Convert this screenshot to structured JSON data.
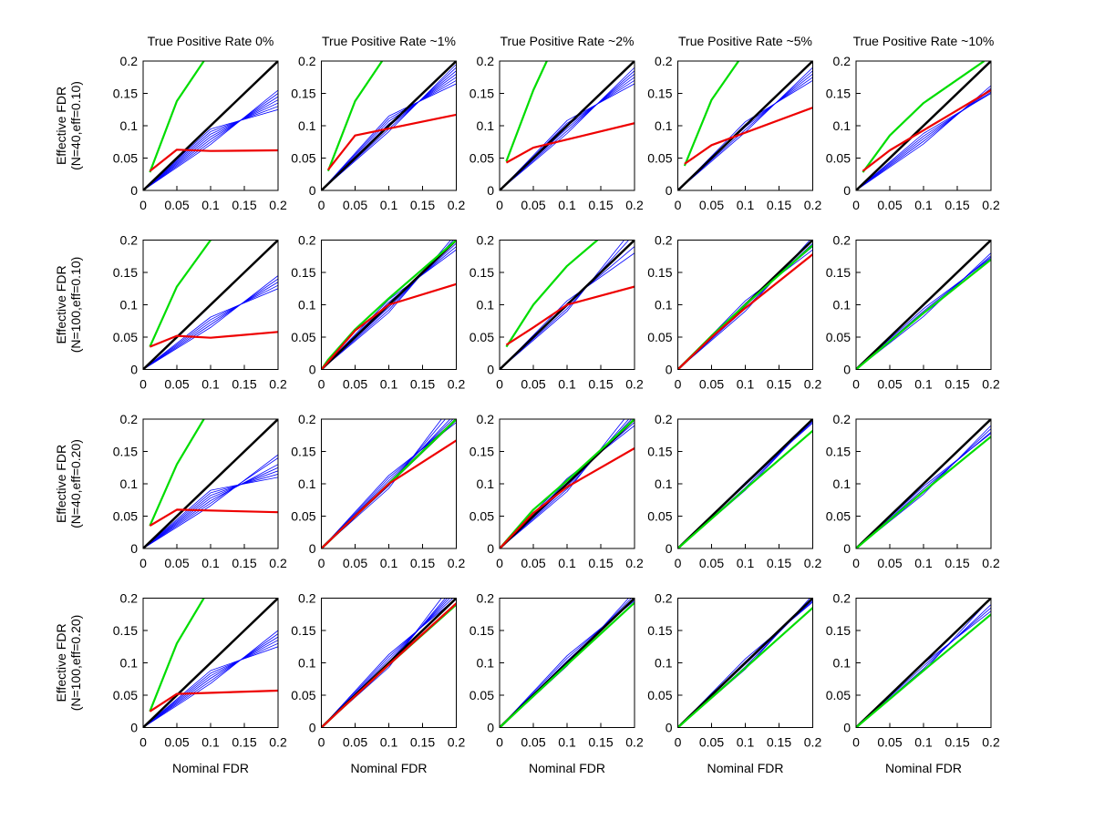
{
  "figure": {
    "column_titles": [
      "True Positive Rate 0%",
      "True Positive Rate ~1%",
      "True Positive Rate ~2%",
      "True Positive Rate ~5%",
      "True Positive Rate ~10%"
    ],
    "row_ylabels": [
      [
        "Effective FDR",
        "(N=40,eff=0.10)"
      ],
      [
        "Effective FDR",
        "(N=100,eff=0.10)"
      ],
      [
        "Effective FDR",
        "(N=40,eff=0.20)"
      ],
      [
        "Effective FDR",
        "(N=100,eff=0.20)"
      ]
    ],
    "xlabel": "Nominal FDR",
    "tick_labels": [
      "0",
      "0.05",
      "0.1",
      "0.15",
      "0.2"
    ],
    "colors": {
      "blue": "#0000ff",
      "green": "#00dd00",
      "red": "#ee0000",
      "black": "#000000"
    }
  },
  "chart_data": {
    "type": "line",
    "grid": false,
    "xlim": [
      0,
      0.2
    ],
    "ylim": [
      0,
      0.2
    ],
    "panels": [
      [
        {
          "green": [
            [
              0.01,
              0.028
            ],
            [
              0.05,
              0.138
            ],
            [
              0.09,
              0.2
            ]
          ],
          "red": [
            [
              0.01,
              0.03
            ],
            [
              0.05,
              0.063
            ],
            [
              0.1,
              0.061
            ],
            [
              0.2,
              0.062
            ]
          ],
          "blue_end": [
            0.155,
            0.15,
            0.145,
            0.14,
            0.135,
            0.13,
            0.125
          ],
          "blue_mid": 0.085
        },
        {
          "green": [
            [
              0.01,
              0.03
            ],
            [
              0.05,
              0.138
            ],
            [
              0.09,
              0.2
            ]
          ],
          "red": [
            [
              0.01,
              0.032
            ],
            [
              0.05,
              0.085
            ],
            [
              0.2,
              0.117
            ]
          ],
          "blue_end": [
            0.195,
            0.19,
            0.185,
            0.18,
            0.175,
            0.17,
            0.165
          ],
          "blue_mid": 0.105
        },
        {
          "green": [
            [
              0.01,
              0.045
            ],
            [
              0.05,
              0.155
            ],
            [
              0.07,
              0.2
            ]
          ],
          "red": [
            [
              0.01,
              0.043
            ],
            [
              0.05,
              0.066
            ],
            [
              0.2,
              0.104
            ]
          ],
          "blue_end": [
            0.19,
            0.185,
            0.18,
            0.175,
            0.17,
            0.165
          ],
          "blue_mid": 0.1
        },
        {
          "green": [
            [
              0.01,
              0.038
            ],
            [
              0.05,
              0.14
            ],
            [
              0.09,
              0.2
            ]
          ],
          "red": [
            [
              0.01,
              0.041
            ],
            [
              0.05,
              0.07
            ],
            [
              0.2,
              0.128
            ]
          ],
          "blue_end": [
            0.19,
            0.185,
            0.18,
            0.175,
            0.17
          ],
          "blue_mid": 0.1
        },
        {
          "green": [
            [
              0.01,
              0.028
            ],
            [
              0.05,
              0.085
            ],
            [
              0.1,
              0.135
            ],
            [
              0.19,
              0.2
            ]
          ],
          "red": [
            [
              0.01,
              0.03
            ],
            [
              0.05,
              0.062
            ],
            [
              0.2,
              0.155
            ]
          ],
          "blue_end": [
            0.162,
            0.158,
            0.155,
            0.152,
            0.15
          ],
          "blue_mid": 0.082
        }
      ],
      [
        {
          "green": [
            [
              0.01,
              0.035
            ],
            [
              0.05,
              0.128
            ],
            [
              0.1,
              0.2
            ]
          ],
          "red": [
            [
              0.01,
              0.035
            ],
            [
              0.05,
              0.052
            ],
            [
              0.1,
              0.049
            ],
            [
              0.2,
              0.058
            ]
          ],
          "blue_end": [
            0.145,
            0.14,
            0.135,
            0.13,
            0.125
          ],
          "blue_mid": 0.075
        },
        {
          "green": [
            [
              0.0,
              0.0
            ],
            [
              0.01,
              0.015
            ],
            [
              0.05,
              0.062
            ],
            [
              0.1,
              0.11
            ],
            [
              0.2,
              0.2
            ]
          ],
          "red": [
            [
              0.0,
              0.0
            ],
            [
              0.05,
              0.06
            ],
            [
              0.1,
              0.1
            ],
            [
              0.2,
              0.132
            ]
          ],
          "blue_end": [
            0.21,
            0.205,
            0.2,
            0.195,
            0.19,
            0.185
          ],
          "blue_mid": 0.1
        },
        {
          "green": [
            [
              0.01,
              0.035
            ],
            [
              0.05,
              0.1
            ],
            [
              0.1,
              0.16
            ],
            [
              0.145,
              0.2
            ]
          ],
          "red": [
            [
              0.01,
              0.038
            ],
            [
              0.05,
              0.065
            ],
            [
              0.1,
              0.1
            ],
            [
              0.2,
              0.128
            ]
          ],
          "blue_end": [
            0.22,
            0.21,
            0.2,
            0.19,
            0.18
          ],
          "blue_mid": 0.1
        },
        {
          "green": [
            [
              0.0,
              0.0
            ],
            [
              0.05,
              0.052
            ],
            [
              0.1,
              0.1
            ],
            [
              0.2,
              0.192
            ]
          ],
          "red": [
            [
              0.0,
              0.0
            ],
            [
              0.05,
              0.05
            ],
            [
              0.1,
              0.095
            ],
            [
              0.2,
              0.178
            ]
          ],
          "blue_end": [
            0.205,
            0.2,
            0.195,
            0.19,
            0.185
          ],
          "blue_mid": 0.1
        },
        {
          "green": [
            [
              0.0,
              0.0
            ],
            [
              0.1,
              0.087
            ],
            [
              0.2,
              0.17
            ]
          ],
          "red": [],
          "blue_end": [
            0.18,
            0.176,
            0.174,
            0.172
          ],
          "blue_mid": 0.09
        }
      ],
      [
        {
          "green": [
            [
              0.01,
              0.035
            ],
            [
              0.05,
              0.13
            ],
            [
              0.09,
              0.2
            ]
          ],
          "red": [
            [
              0.01,
              0.035
            ],
            [
              0.05,
              0.06
            ],
            [
              0.2,
              0.056
            ]
          ],
          "blue_end": [
            0.145,
            0.14,
            0.13,
            0.125,
            0.12,
            0.115,
            0.11
          ],
          "blue_mid": 0.08
        },
        {
          "green": [
            [
              0.0,
              0.0
            ],
            [
              0.1,
              0.1
            ],
            [
              0.2,
              0.2
            ]
          ],
          "red": [
            [
              0.0,
              0.0
            ],
            [
              0.1,
              0.1
            ],
            [
              0.2,
              0.167
            ]
          ],
          "blue_end": [
            0.23,
            0.22,
            0.21,
            0.205,
            0.2,
            0.195
          ],
          "blue_mid": 0.105
        },
        {
          "green": [
            [
              0.0,
              0.0
            ],
            [
              0.05,
              0.06
            ],
            [
              0.1,
              0.105
            ],
            [
              0.2,
              0.2
            ]
          ],
          "red": [
            [
              0.0,
              0.0
            ],
            [
              0.05,
              0.055
            ],
            [
              0.1,
              0.095
            ],
            [
              0.2,
              0.155
            ]
          ],
          "blue_end": [
            0.22,
            0.21,
            0.205,
            0.2,
            0.195,
            0.19
          ],
          "blue_mid": 0.1
        },
        {
          "green": [
            [
              0.0,
              0.0
            ],
            [
              0.1,
              0.092
            ],
            [
              0.2,
              0.182
            ]
          ],
          "red": [],
          "blue_end": [
            0.2,
            0.198,
            0.196,
            0.194
          ],
          "blue_mid": 0.098
        },
        {
          "green": [
            [
              0.0,
              0.0
            ],
            [
              0.1,
              0.088
            ],
            [
              0.2,
              0.173
            ]
          ],
          "red": [],
          "blue_end": [
            0.19,
            0.185,
            0.18,
            0.178
          ],
          "blue_mid": 0.092
        }
      ],
      [
        {
          "green": [
            [
              0.01,
              0.025
            ],
            [
              0.05,
              0.13
            ],
            [
              0.09,
              0.2
            ]
          ],
          "red": [
            [
              0.01,
              0.025
            ],
            [
              0.05,
              0.052
            ],
            [
              0.2,
              0.057
            ]
          ],
          "blue_end": [
            0.15,
            0.145,
            0.14,
            0.135,
            0.13,
            0.125
          ],
          "blue_mid": 0.08
        },
        {
          "green": [
            [
              0.0,
              0.0
            ],
            [
              0.1,
              0.097
            ],
            [
              0.2,
              0.19
            ]
          ],
          "red": [
            [
              0.0,
              0.0
            ],
            [
              0.1,
              0.097
            ],
            [
              0.2,
              0.192
            ]
          ],
          "blue_end": [
            0.23,
            0.22,
            0.215,
            0.21,
            0.205,
            0.2
          ],
          "blue_mid": 0.105
        },
        {
          "green": [
            [
              0.0,
              0.0
            ],
            [
              0.1,
              0.097
            ],
            [
              0.2,
              0.193
            ]
          ],
          "red": [],
          "blue_end": [
            0.21,
            0.205,
            0.2,
            0.198,
            0.196
          ],
          "blue_mid": 0.105
        },
        {
          "green": [
            [
              0.0,
              0.0
            ],
            [
              0.1,
              0.092
            ],
            [
              0.2,
              0.185
            ]
          ],
          "red": [],
          "blue_end": [
            0.205,
            0.2,
            0.198,
            0.196,
            0.194
          ],
          "blue_mid": 0.1
        },
        {
          "green": [
            [
              0.0,
              0.0
            ],
            [
              0.1,
              0.088
            ],
            [
              0.2,
              0.175
            ]
          ],
          "red": [],
          "blue_end": [
            0.2,
            0.19,
            0.185,
            0.18
          ],
          "blue_mid": 0.095
        }
      ]
    ]
  }
}
